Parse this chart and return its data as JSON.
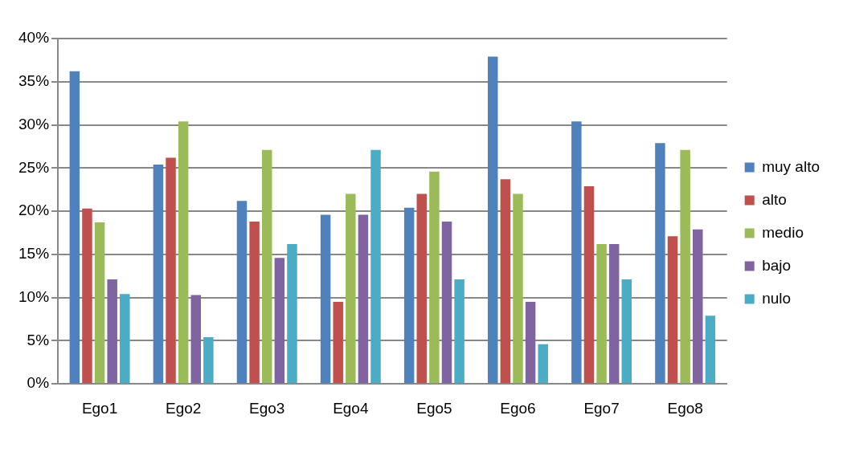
{
  "chart_data": {
    "type": "bar",
    "categories": [
      "Ego1",
      "Ego2",
      "Ego3",
      "Ego4",
      "Ego5",
      "Ego6",
      "Ego7",
      "Ego8"
    ],
    "series": [
      {
        "name": "muy alto",
        "color": "#4f81bd",
        "values": [
          36.2,
          25.4,
          21.2,
          19.6,
          20.4,
          37.9,
          30.4,
          27.9
        ]
      },
      {
        "name": "alto",
        "color": "#c0504d",
        "values": [
          20.3,
          26.2,
          18.8,
          9.5,
          22.0,
          23.7,
          22.9,
          17.1
        ]
      },
      {
        "name": "medio",
        "color": "#9bbb59",
        "values": [
          18.7,
          30.4,
          27.1,
          22.0,
          24.6,
          22.0,
          16.2,
          27.1
        ]
      },
      {
        "name": "bajo",
        "color": "#8064a2",
        "values": [
          12.1,
          10.3,
          14.6,
          19.6,
          18.8,
          9.5,
          16.2,
          17.9
        ]
      },
      {
        "name": "nulo",
        "color": "#4bacc6",
        "values": [
          10.4,
          5.4,
          16.2,
          27.1,
          12.1,
          4.6,
          12.1,
          7.9
        ]
      }
    ],
    "ylim": [
      0,
      40
    ],
    "yticks": [
      {
        "value": 0,
        "label": "0%"
      },
      {
        "value": 5,
        "label": "5%"
      },
      {
        "value": 10,
        "label": "10%"
      },
      {
        "value": 15,
        "label": "15%"
      },
      {
        "value": 20,
        "label": "20%"
      },
      {
        "value": 25,
        "label": "25%"
      },
      {
        "value": 30,
        "label": "30%"
      },
      {
        "value": 35,
        "label": "35%"
      },
      {
        "value": 40,
        "label": "40%"
      }
    ],
    "grid": "y",
    "legend": "right"
  }
}
